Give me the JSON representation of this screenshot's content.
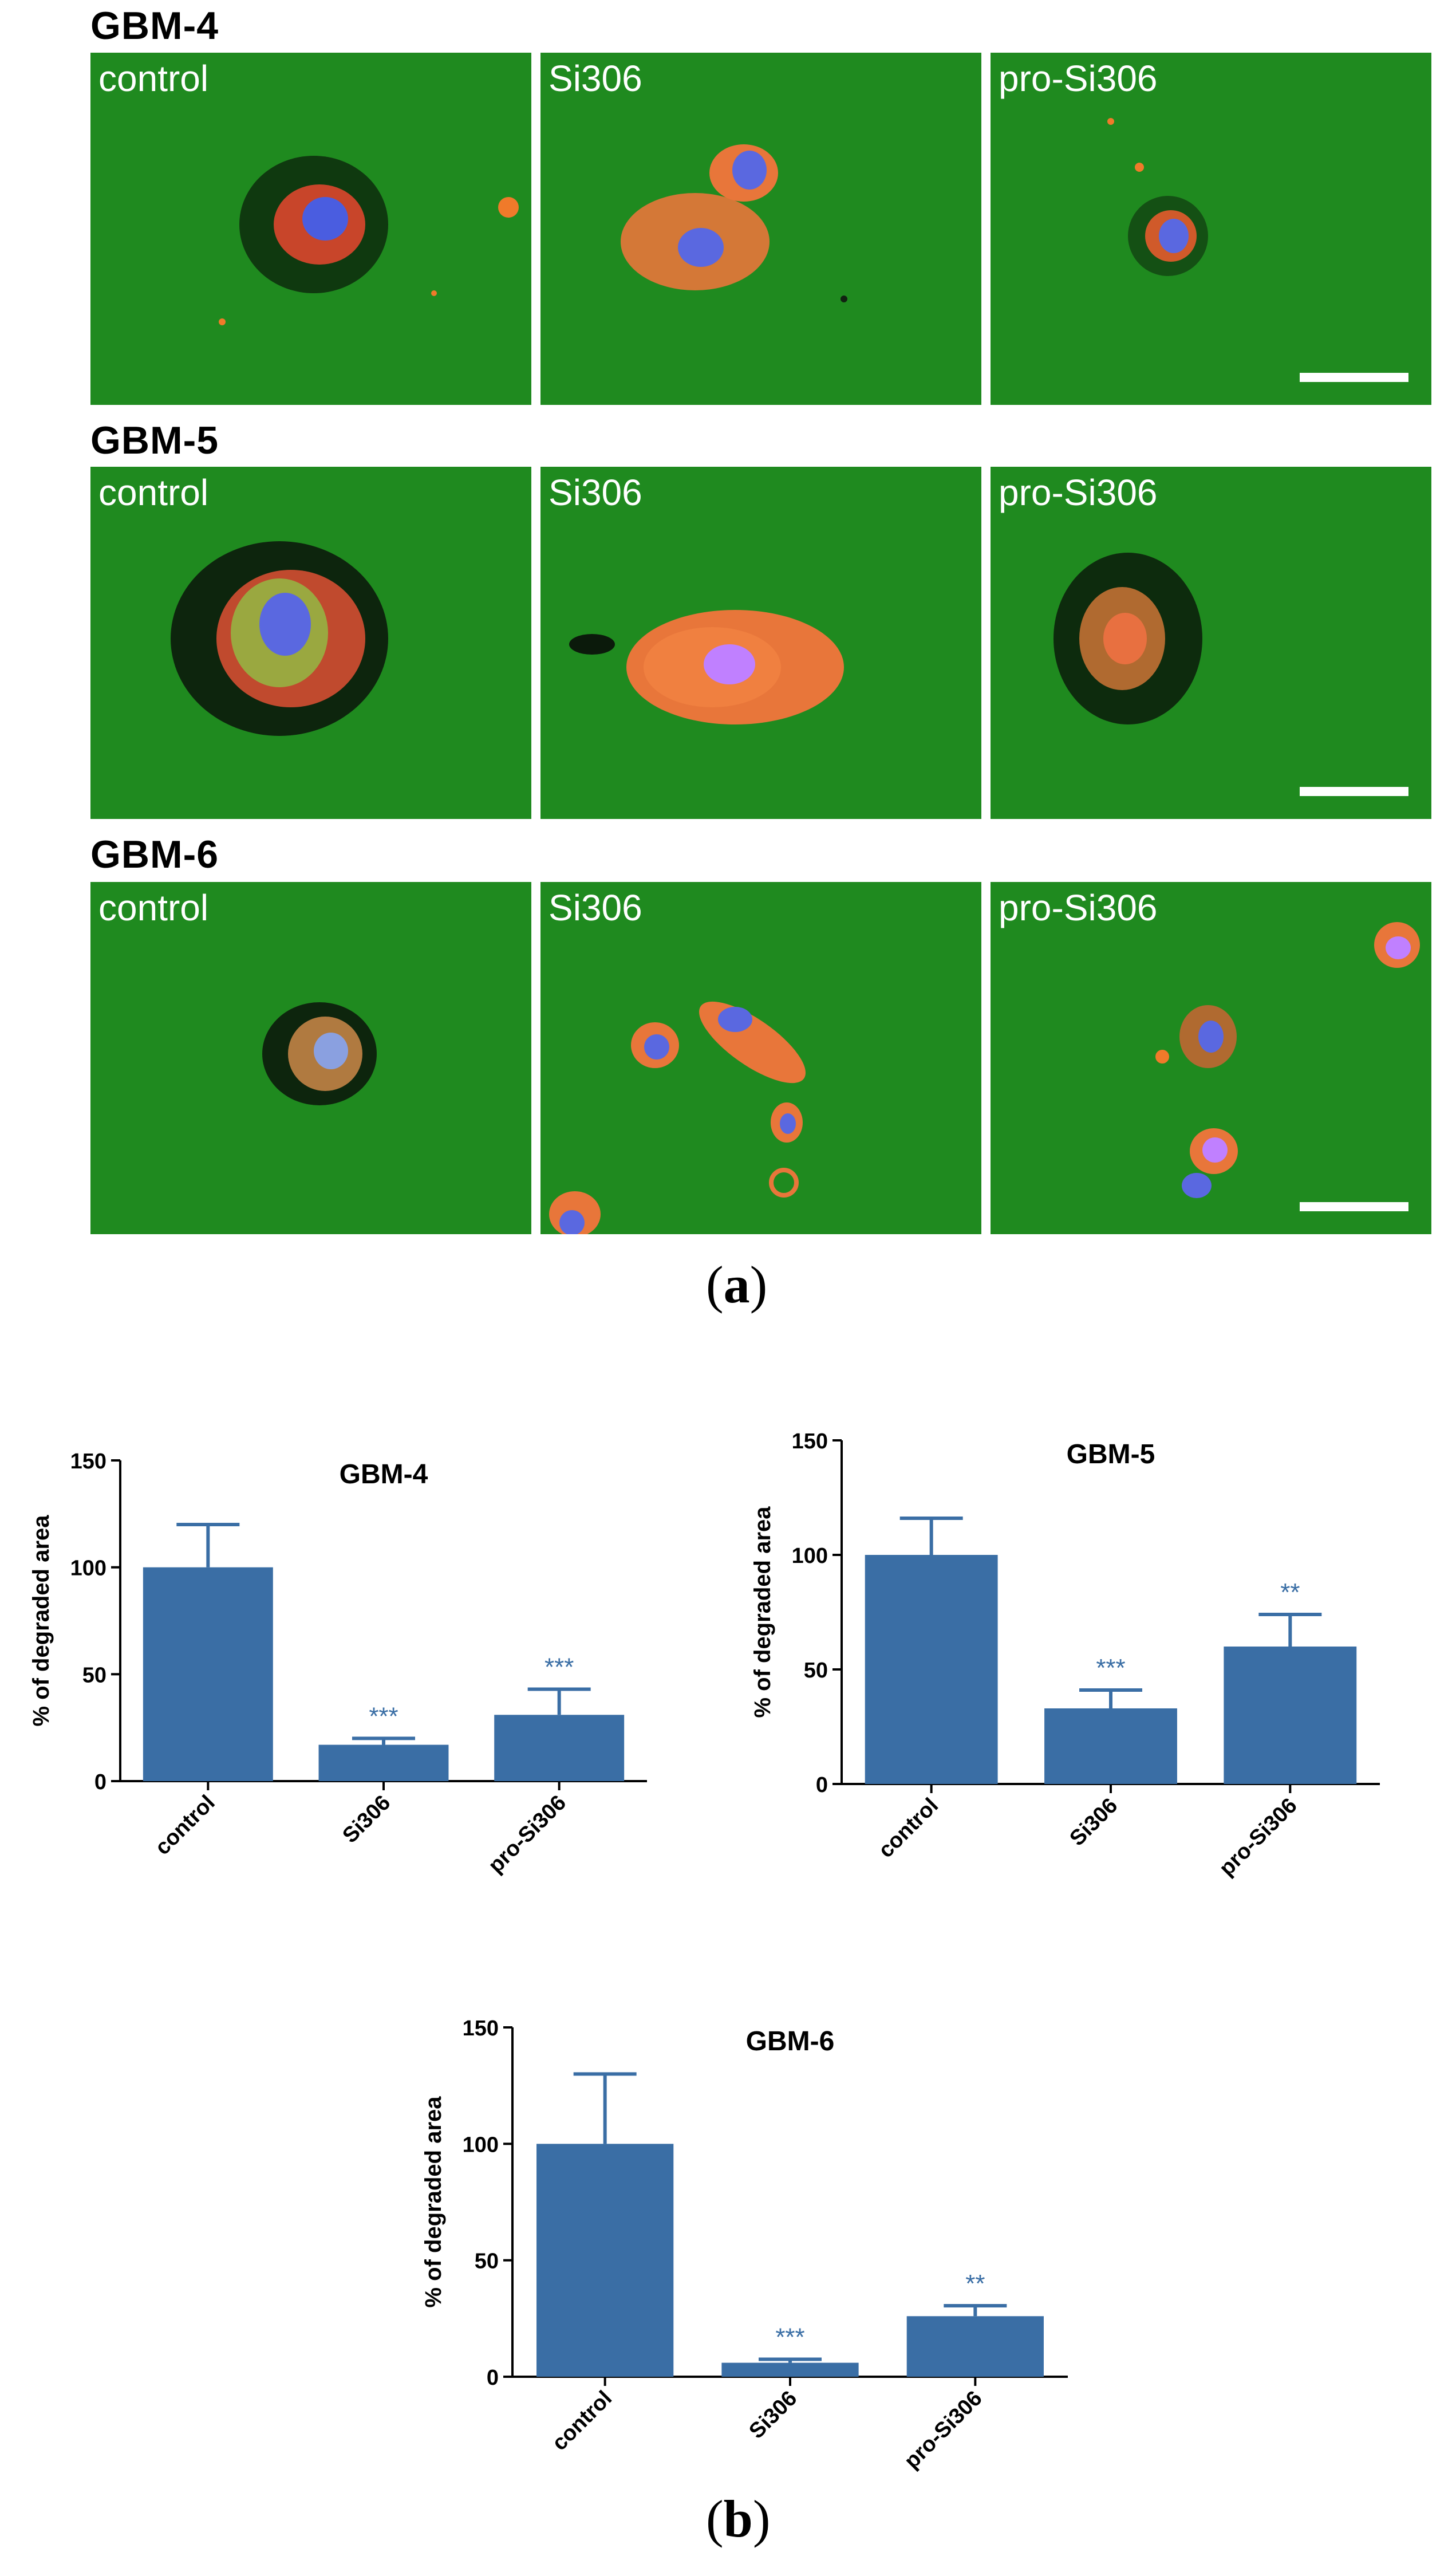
{
  "panel_a": {
    "letter_open": "(",
    "letter": "a",
    "letter_close": ")",
    "groups": [
      {
        "label": "GBM-4",
        "images": [
          {
            "label": "control",
            "scale_bar": false
          },
          {
            "label": "Si306",
            "scale_bar": false
          },
          {
            "label": "pro-Si306",
            "scale_bar": true
          }
        ]
      },
      {
        "label": "GBM-5",
        "images": [
          {
            "label": "control",
            "scale_bar": false
          },
          {
            "label": "Si306",
            "scale_bar": false
          },
          {
            "label": "pro-Si306",
            "scale_bar": true
          }
        ]
      },
      {
        "label": "GBM-6",
        "images": [
          {
            "label": "control",
            "scale_bar": false
          },
          {
            "label": "Si306",
            "scale_bar": false
          },
          {
            "label": "pro-Si306",
            "scale_bar": true
          }
        ]
      }
    ]
  },
  "panel_b": {
    "letter_open": "(",
    "letter": "b",
    "letter_close": ")"
  },
  "colors": {
    "bar": "#3a6ea5",
    "significance": "#3a6ea5",
    "axis": "#000000",
    "micro_background": "#1f8a1f"
  },
  "chart_data": [
    {
      "type": "bar",
      "title": "GBM-4",
      "categories": [
        "control",
        "Si306",
        "pro-Si306"
      ],
      "values": [
        100,
        17,
        31
      ],
      "errors": [
        20,
        3,
        12
      ],
      "significance": [
        "",
        "***",
        "***"
      ],
      "ylabel": "% of degraded area",
      "xlabel": "",
      "ylim": [
        0,
        150
      ],
      "yticks": [
        0,
        50,
        100,
        150
      ],
      "grid": false
    },
    {
      "type": "bar",
      "title": "GBM-5",
      "categories": [
        "control",
        "Si306",
        "pro-Si306"
      ],
      "values": [
        100,
        33,
        60
      ],
      "errors": [
        16,
        8,
        14
      ],
      "significance": [
        "",
        "***",
        "**"
      ],
      "ylabel": "% of degraded area",
      "xlabel": "",
      "ylim": [
        0,
        150
      ],
      "yticks": [
        0,
        50,
        100,
        150
      ],
      "grid": false
    },
    {
      "type": "bar",
      "title": "GBM-6",
      "categories": [
        "control",
        "Si306",
        "pro-Si306"
      ],
      "values": [
        100,
        6,
        26
      ],
      "errors": [
        30,
        1.5,
        4.5
      ],
      "significance": [
        "",
        "***",
        "**"
      ],
      "ylabel": "% of degraded area",
      "xlabel": "",
      "ylim": [
        0,
        150
      ],
      "yticks": [
        0,
        50,
        100,
        150
      ],
      "grid": false
    }
  ]
}
